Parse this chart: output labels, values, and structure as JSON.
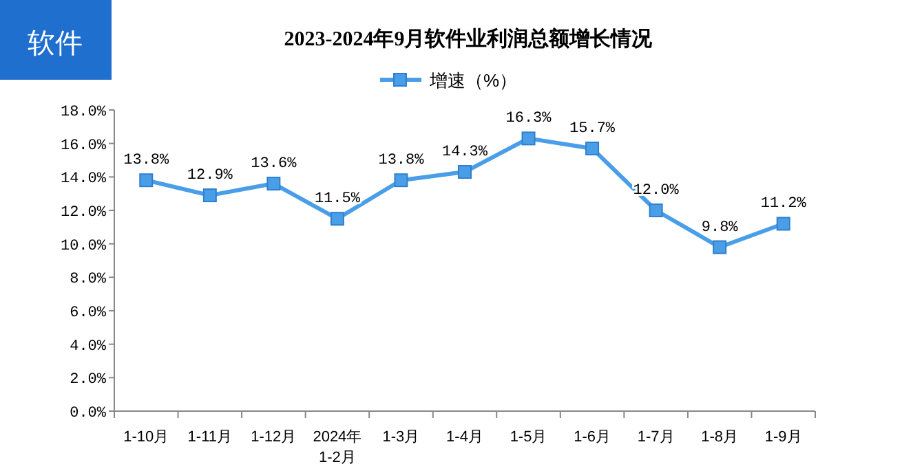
{
  "chart_data": {
    "type": "line",
    "title": "2023-2024年9月软件业利润总额增长情况",
    "annotations": [
      "软件"
    ],
    "categories": [
      "1-10月",
      "1-11月",
      "1-12月",
      "2024年\n1-2月",
      "1-3月",
      "1-4月",
      "1-5月",
      "1-6月",
      "1-7月",
      "1-8月",
      "1-9月"
    ],
    "series": [
      {
        "name": "增速（%）",
        "color": "#4a9ee8",
        "values": [
          13.8,
          12.9,
          13.6,
          11.5,
          13.8,
          14.3,
          16.3,
          15.7,
          12.0,
          9.8,
          11.2
        ],
        "value_labels": [
          "13.8%",
          "12.9%",
          "13.6%",
          "11.5%",
          "13.8%",
          "14.3%",
          "16.3%",
          "15.7%",
          "12.0%",
          "9.8%",
          "11.2%"
        ]
      }
    ],
    "ylim": [
      0,
      18
    ],
    "yticks": [
      {
        "value": 0,
        "label": "0.0%"
      },
      {
        "value": 2,
        "label": "2.0%"
      },
      {
        "value": 4,
        "label": "4.0%"
      },
      {
        "value": 6,
        "label": "6.0%"
      },
      {
        "value": 8,
        "label": "8.0%"
      },
      {
        "value": 10,
        "label": "10.0%"
      },
      {
        "value": 12,
        "label": "12.0%"
      },
      {
        "value": 14,
        "label": "14.0%"
      },
      {
        "value": 16,
        "label": "16.0%"
      },
      {
        "value": 18,
        "label": "18.0%"
      }
    ],
    "marker": "square",
    "line_style": "solid",
    "legend": "top",
    "grid": false
  }
}
